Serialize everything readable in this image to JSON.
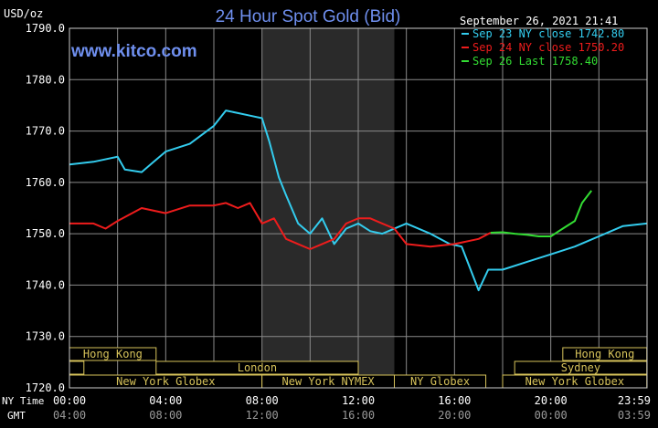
{
  "chart_data": {
    "type": "line",
    "title": "24 Hour Spot Gold (Bid)",
    "watermark": "www.kitco.com",
    "ylabel": "USD/oz",
    "ylim": [
      1720,
      1790
    ],
    "y_ticks": [
      "1720.0",
      "1730.0",
      "1740.0",
      "1750.0",
      "1760.0",
      "1770.0",
      "1780.0",
      "1790.0"
    ],
    "xlim": [
      0,
      24
    ],
    "ny_time_label": "NY Time",
    "gmt_label": "GMT",
    "x_ticks_ny": [
      "00:00",
      "04:00",
      "08:00",
      "12:00",
      "16:00",
      "20:00",
      "23:59"
    ],
    "x_ticks_gmt": [
      "04:00",
      "08:00",
      "12:00",
      "16:00",
      "20:00",
      "00:00",
      "03:59"
    ],
    "date_label": "September 26, 2021 21:41",
    "grid": true,
    "legend_position": "top-right",
    "shaded_region_hours": [
      8,
      13.5
    ],
    "series": [
      {
        "name": "Sep 23 NY close 1742.80",
        "color": "#33ccee",
        "x": [
          0,
          1,
          2,
          2.3,
          3,
          3.5,
          4,
          5,
          6,
          6.5,
          7,
          7.5,
          8,
          8.3,
          8.7,
          9,
          9.5,
          10,
          10.5,
          11,
          11.5,
          12,
          12.5,
          13,
          14,
          15,
          15.8,
          16.3,
          17,
          17.4,
          18,
          19,
          20,
          21,
          22,
          23,
          23.99
        ],
        "values": [
          1763.5,
          1764,
          1765,
          1762.5,
          1762,
          1764,
          1766,
          1767.5,
          1771,
          1774,
          1773.5,
          1773,
          1772.5,
          1768,
          1761,
          1757.5,
          1752,
          1750,
          1753,
          1748,
          1751,
          1752,
          1750.5,
          1750,
          1752,
          1750,
          1748,
          1747.5,
          1739,
          1743,
          1743,
          1744.5,
          1746,
          1747.5,
          1749.5,
          1751.5,
          1752
        ]
      },
      {
        "name": "Sep 24 NY close 1750.20",
        "color": "#ee1c1c",
        "x": [
          0,
          1,
          1.5,
          2,
          3,
          4,
          5,
          6,
          6.5,
          7,
          7.5,
          8,
          8.5,
          9,
          9.5,
          10,
          10.5,
          11,
          11.5,
          12,
          12.5,
          13,
          13.5,
          14,
          15,
          16,
          17,
          17.5
        ],
        "values": [
          1752,
          1752,
          1751,
          1752.5,
          1755,
          1754,
          1755.5,
          1755.5,
          1756,
          1755,
          1756,
          1752,
          1753,
          1749,
          1748,
          1747,
          1748,
          1749,
          1752,
          1753,
          1753,
          1752,
          1751,
          1748,
          1747.5,
          1748,
          1749,
          1750.2
        ]
      },
      {
        "name": "Sep 26 Last 1758.40",
        "color": "#33dd33",
        "x": [
          17.5,
          18,
          18.5,
          19,
          19.5,
          20,
          20.5,
          21,
          21.3,
          21.69
        ],
        "values": [
          1750.2,
          1750.3,
          1750,
          1749.8,
          1749.5,
          1749.5,
          1751,
          1752.5,
          1756,
          1758.4
        ]
      }
    ],
    "sessions": [
      {
        "label": "Hong Kong",
        "row": 1,
        "start": 0,
        "end": 3.6
      },
      {
        "label": "London",
        "row": 2,
        "start": 0,
        "end": 0.6
      },
      {
        "label": "London",
        "row": 2,
        "start": 3.6,
        "end": 12
      },
      {
        "label": "New York Globex",
        "row": 3,
        "start": 0,
        "end": 8
      },
      {
        "label": "New York NYMEX",
        "row": 3,
        "start": 8,
        "end": 13.5
      },
      {
        "label": "NY Globex",
        "row": 3,
        "start": 13.5,
        "end": 17.3
      },
      {
        "label": "Sydney",
        "row": 2,
        "start": 18.5,
        "end": 23.99
      },
      {
        "label": "Hong Kong",
        "row": 1,
        "start": 20.5,
        "end": 23.99
      },
      {
        "label": "New York Globex",
        "row": 3,
        "start": 18,
        "end": 23.99
      }
    ]
  }
}
